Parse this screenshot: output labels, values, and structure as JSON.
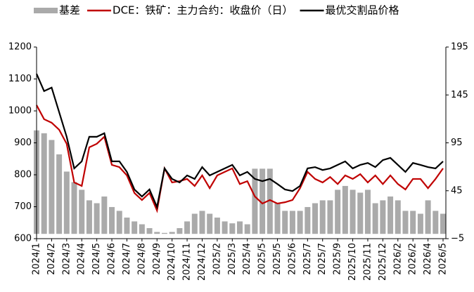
{
  "chart_data": {
    "type": "bar_line_dual",
    "categories": [
      "2024/1",
      null,
      "2024/2",
      null,
      "2024/3",
      null,
      "2024/4",
      null,
      "2024/5",
      null,
      "2024/6",
      null,
      "2024/7",
      null,
      "2024/8",
      null,
      "2024/9",
      null,
      "2024/10",
      null,
      "2024/11",
      null,
      "2024/12",
      null,
      "2025/2",
      null,
      "2025/3",
      null,
      "2025/4",
      null,
      "2025/5",
      null,
      "2025/5",
      null,
      "2025/6",
      null,
      "2025/7",
      null,
      "2025/7",
      null,
      "2025/9",
      null,
      "2025/10",
      null,
      "2025/11",
      null,
      "2025/12",
      null,
      "2026/2",
      null,
      "2026/2",
      null,
      "2026/4",
      null,
      "2026/5"
    ],
    "series": [
      {
        "name": "基差",
        "kind": "bar",
        "axis": "y2",
        "color": "#aaaaaa",
        "values": [
          108,
          105,
          98,
          83,
          65,
          54,
          46,
          35,
          32,
          39,
          28,
          24,
          17,
          13,
          10,
          6,
          2,
          1,
          2,
          6,
          13,
          21,
          24,
          21,
          17,
          13,
          11,
          13,
          10,
          68,
          68,
          68,
          32,
          24,
          24,
          24,
          28,
          32,
          35,
          35,
          46,
          50,
          46,
          43,
          46,
          32,
          35,
          39,
          35,
          24,
          24,
          21,
          35,
          24,
          21
        ]
      },
      {
        "name": "DCE：铁矿：主力合约：收盘价（日）",
        "kind": "line",
        "color": "#c00000",
        "values": [
          1018,
          974,
          963,
          941,
          897,
          776,
          765,
          886,
          897,
          919,
          831,
          824,
          798,
          743,
          721,
          743,
          688,
          820,
          776,
          780,
          787,
          765,
          798,
          758,
          798,
          809,
          820,
          771,
          780,
          732,
          710,
          721,
          710,
          714,
          721,
          758,
          809,
          787,
          776,
          793,
          771,
          798,
          787,
          802,
          776,
          798,
          771,
          798,
          771,
          754,
          787,
          787,
          758,
          787,
          820
        ]
      },
      {
        "name": "最优交割品价格",
        "kind": "line",
        "color": "#000000",
        "values": [
          1116,
          1062,
          1073,
          996,
          919,
          820,
          842,
          919,
          919,
          930,
          842,
          842,
          809,
          754,
          732,
          754,
          699,
          820,
          787,
          776,
          798,
          787,
          824,
          798,
          809,
          820,
          831,
          798,
          809,
          787,
          780,
          787,
          771,
          754,
          749,
          765,
          820,
          824,
          815,
          820,
          831,
          842,
          820,
          831,
          837,
          824,
          846,
          853,
          831,
          809,
          837,
          831,
          824,
          820,
          842
        ]
      }
    ],
    "ylim": [
      600,
      1200
    ],
    "yticks": [
      600,
      700,
      800,
      900,
      1000,
      1100,
      1200
    ],
    "y2lim": [
      -5,
      195
    ],
    "y2ticks": [
      {
        "value": -5,
        "label": "−5"
      },
      45,
      95,
      145,
      195
    ]
  }
}
